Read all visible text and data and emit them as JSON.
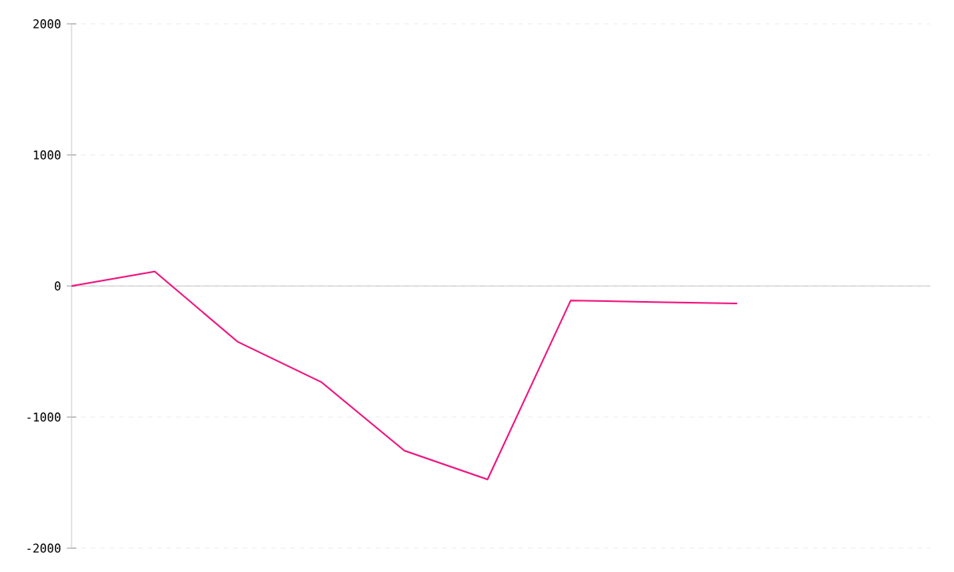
{
  "chart_data": {
    "type": "line",
    "categories": [
      null,
      null,
      null,
      null,
      null,
      null,
      null,
      null,
      null
    ],
    "series": [
      {
        "color": "#f0147f",
        "values": [
          0,
          110,
          -427,
          -732,
          -1256,
          -1476,
          -110,
          -122,
          -134
        ]
      }
    ],
    "ylim": [
      -2000,
      2000
    ],
    "yticks": [
      -2000,
      -1000,
      0,
      1000,
      2000
    ],
    "grid": "y",
    "tick_labels": "y",
    "marker": "none",
    "line_style": "solid"
  }
}
